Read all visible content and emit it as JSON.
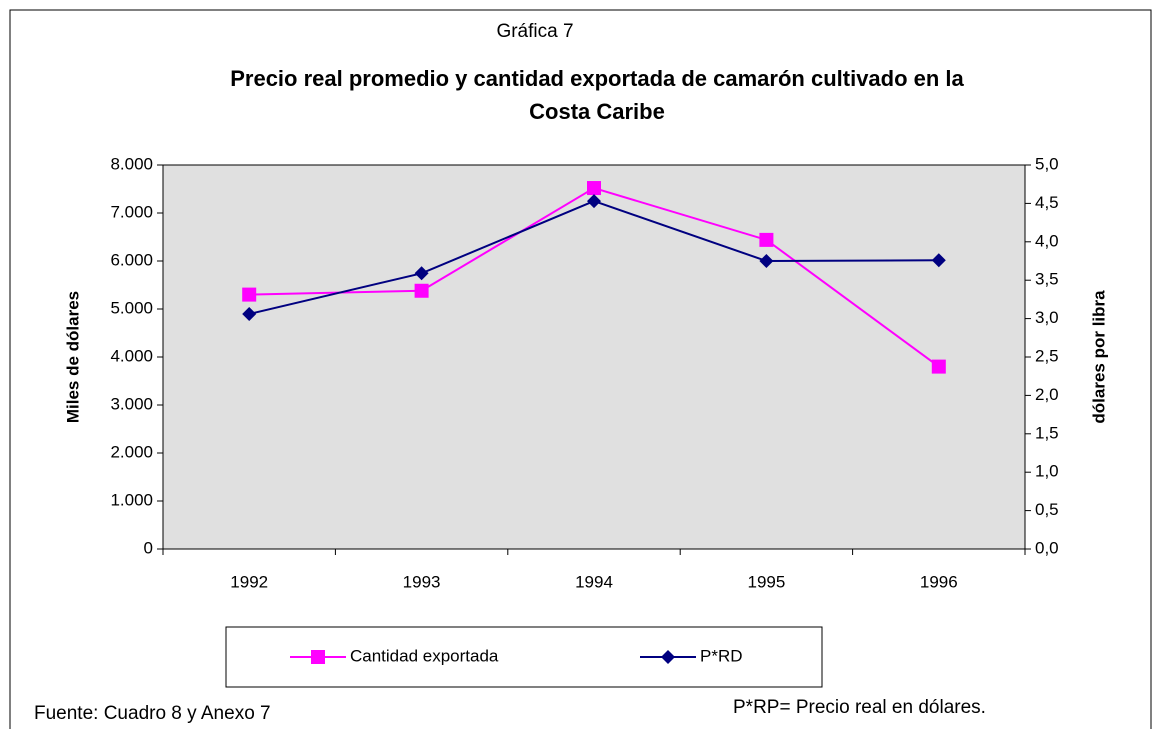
{
  "chart_data": {
    "type": "line",
    "header": "Gráfica 7",
    "title_lines": [
      "Precio real promedio y cantidad exportada de camarón cultivado en la",
      "Costa Caribe"
    ],
    "ylabel": "Miles de dólares",
    "y2label": "dólares por libra",
    "categories": [
      "1992",
      "1993",
      "1994",
      "1995",
      "1996"
    ],
    "series": [
      {
        "name": "Cantidad exportada",
        "color": "#ff00ff",
        "marker": "square",
        "values": [
          5300,
          5380,
          7520,
          6440,
          3800
        ]
      },
      {
        "name": "P*RD",
        "color": "#000080",
        "marker": "diamond",
        "axis": "y2",
        "values": [
          3.06,
          3.59,
          4.53,
          3.75,
          3.76
        ]
      }
    ],
    "ylim": [
      0,
      8000
    ],
    "yticks": [
      0,
      {
        "value": 1000,
        "label": "1.000"
      },
      {
        "value": 2000,
        "label": "2.000"
      },
      {
        "value": 3000,
        "label": "3.000"
      },
      {
        "value": 4000,
        "label": "4.000"
      },
      {
        "value": 5000,
        "label": "5.000"
      },
      {
        "value": 6000,
        "label": "6.000"
      },
      {
        "value": 7000,
        "label": "7.000"
      },
      {
        "value": 8000,
        "label": "8.000"
      }
    ],
    "y2lim": [
      0,
      5
    ],
    "y2ticks": [
      {
        "value": 0,
        "label": "0,0"
      },
      {
        "value": 0.5,
        "label": "0,5"
      },
      {
        "value": 1,
        "label": "1,0"
      },
      {
        "value": 1.5,
        "label": "1,5"
      },
      {
        "value": 2,
        "label": "2,0"
      },
      {
        "value": 2.5,
        "label": "2,5"
      },
      {
        "value": 3,
        "label": "3,0"
      },
      {
        "value": 3.5,
        "label": "3,5"
      },
      {
        "value": 4,
        "label": "4,0"
      },
      {
        "value": 4.5,
        "label": "4,5"
      },
      {
        "value": 5,
        "label": "5,0"
      }
    ],
    "grid": false,
    "legend": "bottom",
    "plot_background": "#e0e0e0",
    "notes": [
      "Fuente: Cuadro 8 y Anexo 7",
      "P*RP= Precio real en dólares."
    ]
  }
}
